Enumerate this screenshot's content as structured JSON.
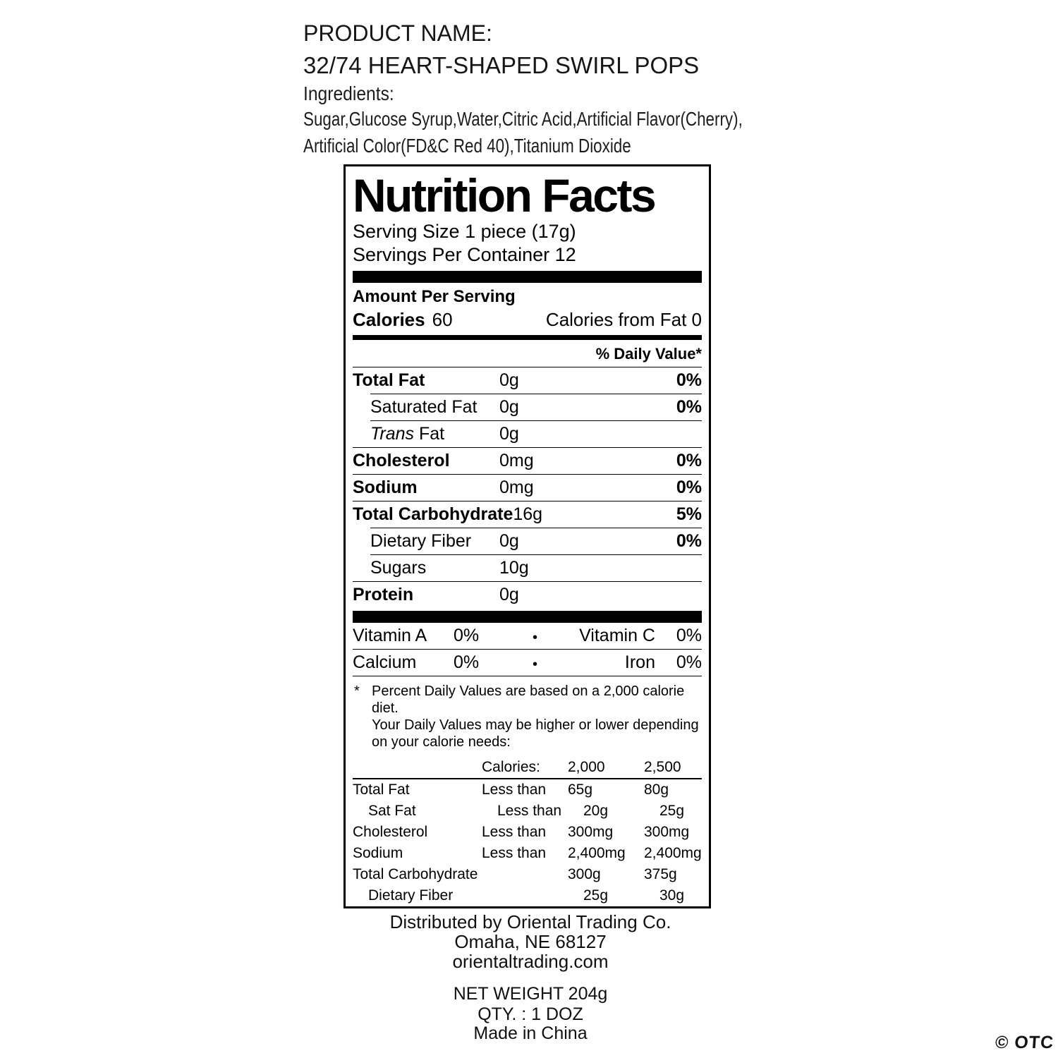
{
  "product_header": {
    "label": "PRODUCT NAME:",
    "name": "32/74 HEART-SHAPED SWIRL POPS",
    "ingredients_label": "Ingredients:",
    "ingredients_line1": "Sugar,Glucose Syrup,Water,Citric Acid,Artificial Flavor(Cherry),",
    "ingredients_line2": "Artificial Color(FD&C Red 40),Titanium Dioxide"
  },
  "nutrition_label": {
    "title": "Nutrition Facts",
    "serving_size": "Serving Size 1 piece (17g)",
    "servings_per_container": "Servings Per Container 12",
    "amount_per_serving": "Amount Per Serving",
    "calories_label": "Calories",
    "calories_value": "60",
    "calories_from_fat": "Calories from Fat 0",
    "daily_value_header": "% Daily Value*",
    "bullet": "•",
    "rows": [
      {
        "name": "Total Fat",
        "amount": "0g",
        "dv": "0%"
      },
      {
        "name": "Saturated Fat",
        "amount": "0g",
        "dv": "0%"
      },
      {
        "name_italic": "Trans",
        "name": " Fat",
        "amount": "0g"
      },
      {
        "name": "Cholesterol",
        "amount": "0mg",
        "dv": "0%"
      },
      {
        "name": "Sodium",
        "amount": "0mg",
        "dv": "0%"
      },
      {
        "name": "Total Carbohydrate",
        "amount": "16g",
        "dv": "5%"
      },
      {
        "name": "Dietary Fiber",
        "amount": "0g",
        "dv": "0%"
      },
      {
        "name": "Sugars",
        "amount": "10g"
      },
      {
        "name": "Protein",
        "amount": "0g"
      }
    ],
    "micronutrients": [
      {
        "left_name": "Vitamin A",
        "left_value": "0%",
        "right_name": "Vitamin C",
        "right_value": "0%"
      },
      {
        "left_name": "Calcium",
        "left_value": "0%",
        "right_name": "Iron",
        "right_value": "0%"
      }
    ],
    "footnote_star": "*",
    "footnote_lines": [
      "Percent Daily Values are based on a 2,000 calorie diet.",
      "Your Daily Values may be higher or lower depending",
      "on your calorie needs:"
    ],
    "dv_table": {
      "header": {
        "calories_label": "Calories:",
        "col_2000": "2,000",
        "col_2500": "2,500"
      },
      "rows": [
        {
          "label": "Total Fat",
          "qualifier": "Less than",
          "v2000": "65g",
          "v2500": "80g"
        },
        {
          "label": "Sat Fat",
          "qualifier": "Less than",
          "v2000": "20g",
          "v2500": "25g"
        },
        {
          "label": "Cholesterol",
          "qualifier": "Less than",
          "v2000": "300mg",
          "v2500": "300mg"
        },
        {
          "label": "Sodium",
          "qualifier": "Less than",
          "v2000": "2,400mg",
          "v2500": "2,400mg"
        },
        {
          "label": "Total Carbohydrate",
          "qualifier": "",
          "v2000": "300g",
          "v2500": "375g"
        },
        {
          "label": "Dietary Fiber",
          "qualifier": "",
          "v2000": "25g",
          "v2500": "30g"
        }
      ]
    }
  },
  "distributor": {
    "line1": "Distributed by Oriental Trading Co.",
    "line2": "Omaha, NE 68127",
    "line3": "orientaltrading.com"
  },
  "package_info": {
    "net_weight": "NET WEIGHT 204g",
    "quantity": "QTY. : 1 DOZ",
    "origin": "Made in China"
  },
  "watermark": "© OTC"
}
